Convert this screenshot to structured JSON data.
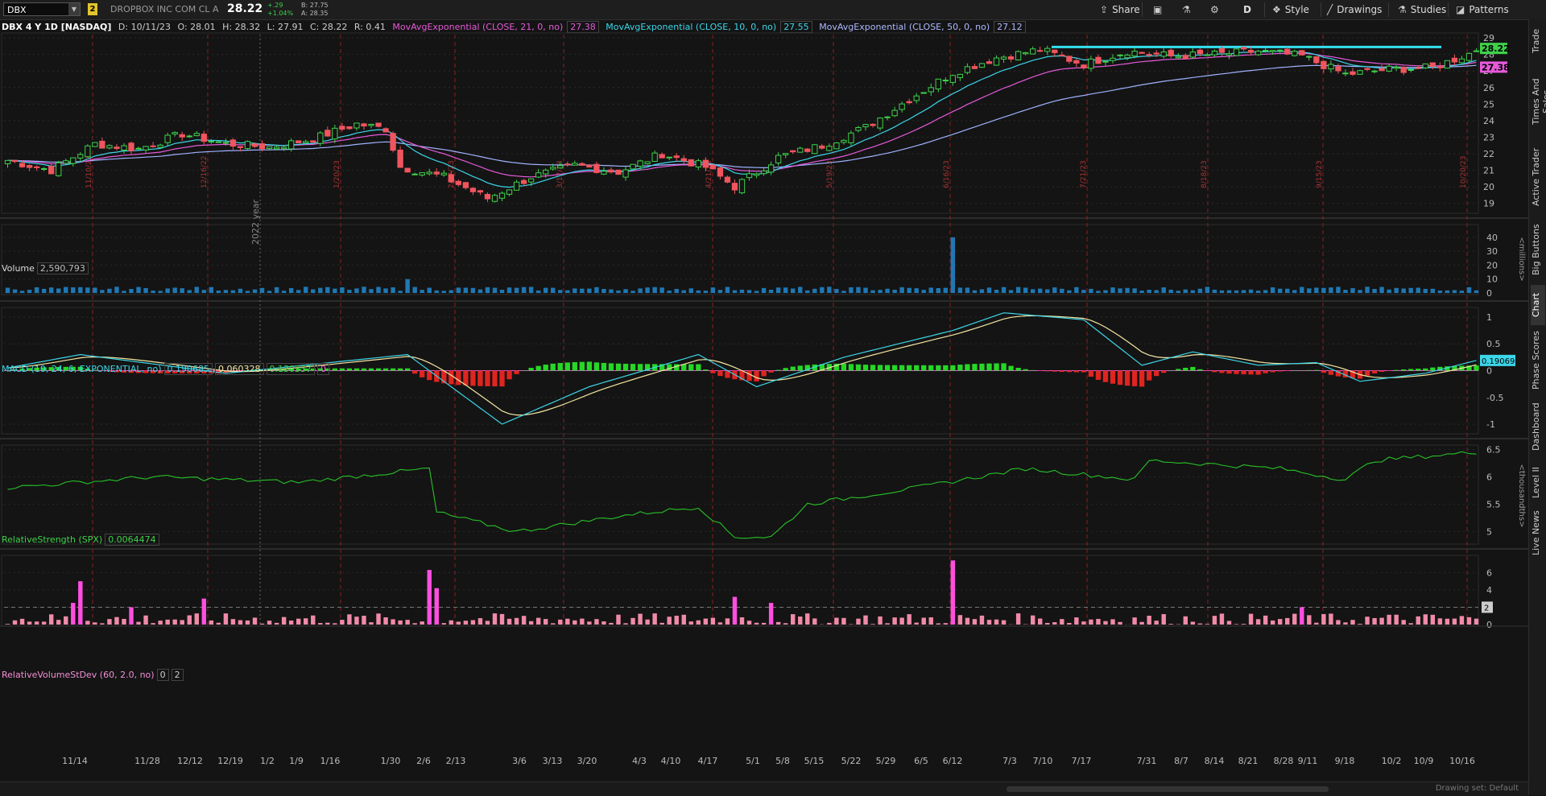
{
  "header": {
    "symbol": "DBX",
    "link_badge": "2",
    "company": "DROPBOX INC COM CL A",
    "last": "28.22",
    "change": "+.29",
    "change_pct": "+1.04%",
    "bid": "B: 27.75",
    "ask": "A: 28.35",
    "buttons": {
      "share": "Share",
      "period": "D",
      "style": "Style",
      "drawings": "Drawings",
      "studies": "Studies",
      "patterns": "Patterns"
    }
  },
  "info": {
    "title": "DBX 4 Y 1D [NASDAQ]",
    "date": "D: 10/11/23",
    "open": "O: 28.01",
    "high": "H: 28.32",
    "low": "L: 27.91",
    "close": "C: 28.22",
    "range": "R: 0.41",
    "ema21_label": "MovAvgExponential (CLOSE, 21, 0, no)",
    "ema21_val": "27.38",
    "ema10_label": "MovAvgExponential (CLOSE, 10, 0, no)",
    "ema10_val": "27.55",
    "ema50_label": "MovAvgExponential (CLOSE, 50, 0, no)",
    "ema50_val": "27.12"
  },
  "volume_panel": {
    "label": "Volume",
    "value": "2,590,793",
    "unit": "<millions>",
    "ticks": [
      "40",
      "30",
      "20",
      "10",
      "0"
    ]
  },
  "macd_panel": {
    "label": "MACD (10, 24, 6, EXPONENTIAL, no)",
    "v1": "0.190685",
    "v2": "0.060328",
    "v3": "0.130357",
    "v4": "0",
    "tag": "0.19069",
    "ticks": [
      "1",
      "0.5",
      "0",
      "-0.5",
      "-1"
    ]
  },
  "rs_panel": {
    "label": "RelativeStrength (SPX)",
    "value": "0.0064474",
    "unit": "<thousandths>",
    "ticks": [
      "6.5",
      "6",
      "5.5",
      "5"
    ]
  },
  "rv_panel": {
    "label": "RelativeVolumeStDev (60, 2.0, no)",
    "v1": "0",
    "v2": "2",
    "tag": "2",
    "ticks": [
      "6",
      "4",
      "2",
      "0"
    ]
  },
  "side_tabs": [
    "Trade",
    "Times And Sales",
    "Active Trader",
    "Big Buttons",
    "Chart",
    "Phase Scores",
    "Dashboard",
    "Level II",
    "Live News"
  ],
  "bottom": {
    "drawing_set": "Drawing set: Default"
  },
  "price_tags": {
    "last": "28.22",
    "ema21": "27.38"
  },
  "chart_data": {
    "type": "candlestick",
    "ylim": [
      18.5,
      29.2
    ],
    "yticks": [
      "29",
      "28",
      "27",
      "26",
      "25",
      "24",
      "23",
      "22",
      "21",
      "20",
      "19"
    ],
    "x_labels": [
      "11/14",
      "11/28",
      "12/12",
      "12/19",
      "1/2",
      "1/9",
      "1/16",
      "1/30",
      "2/6",
      "2/13",
      "3/6",
      "3/13",
      "3/20",
      "4/3",
      "4/10",
      "4/17",
      "5/1",
      "5/8",
      "5/15",
      "5/22",
      "5/29",
      "6/5",
      "6/12",
      "7/3",
      "7/10",
      "7/17",
      "7/31",
      "8/7",
      "8/14",
      "8/21",
      "8/28",
      "9/11",
      "9/18",
      "10/2",
      "10/9",
      "10/16"
    ],
    "year_label": "2022 year",
    "earnings_markers": [
      "11/10/22",
      "12/16/22",
      "1/20/23",
      "2/17/23",
      "3/17/23",
      "4/21/23",
      "5/19/23",
      "6/16/23",
      "7/21/23",
      "8/18/23",
      "9/15/23",
      "10/20/23"
    ],
    "price_path": [
      [
        0,
        21.6
      ],
      [
        6,
        21.0
      ],
      [
        12,
        22.6
      ],
      [
        18,
        22.3
      ],
      [
        24,
        23.2
      ],
      [
        30,
        22.6
      ],
      [
        36,
        22.4
      ],
      [
        42,
        22.9
      ],
      [
        48,
        23.8
      ],
      [
        52,
        23.5
      ],
      [
        54,
        21.2
      ],
      [
        60,
        20.6
      ],
      [
        66,
        19.3
      ],
      [
        72,
        20.6
      ],
      [
        78,
        21.3
      ],
      [
        84,
        20.9
      ],
      [
        90,
        22.0
      ],
      [
        96,
        21.2
      ],
      [
        100,
        20.0
      ],
      [
        106,
        21.8
      ],
      [
        112,
        22.5
      ],
      [
        118,
        23.6
      ],
      [
        124,
        25.3
      ],
      [
        130,
        26.9
      ],
      [
        136,
        27.8
      ],
      [
        142,
        28.3
      ],
      [
        148,
        27.4
      ],
      [
        154,
        28.2
      ],
      [
        160,
        27.9
      ],
      [
        166,
        28.0
      ],
      [
        172,
        28.2
      ],
      [
        178,
        27.9
      ],
      [
        184,
        26.8
      ],
      [
        190,
        27.1
      ],
      [
        196,
        27.2
      ],
      [
        202,
        28.22
      ]
    ],
    "resistance": 28.45,
    "volume_m": [
      [
        0,
        3
      ],
      [
        20,
        2
      ],
      [
        40,
        3
      ],
      [
        55,
        10
      ],
      [
        60,
        3
      ],
      [
        100,
        4
      ],
      [
        115,
        3
      ],
      [
        130,
        40
      ],
      [
        135,
        3
      ],
      [
        160,
        4
      ],
      [
        202,
        2.6
      ]
    ],
    "macd_path": [
      [
        0,
        0.05
      ],
      [
        10,
        0.3
      ],
      [
        30,
        -0.05
      ],
      [
        55,
        0.3
      ],
      [
        68,
        -1.0
      ],
      [
        80,
        -0.3
      ],
      [
        95,
        0.3
      ],
      [
        103,
        -0.3
      ],
      [
        115,
        0.25
      ],
      [
        130,
        0.75
      ],
      [
        137,
        1.08
      ],
      [
        148,
        0.95
      ],
      [
        156,
        0.1
      ],
      [
        163,
        0.35
      ],
      [
        172,
        0.1
      ],
      [
        180,
        0.15
      ],
      [
        186,
        -0.2
      ],
      [
        195,
        -0.05
      ],
      [
        202,
        0.19
      ]
    ],
    "rs_path": [
      [
        0,
        5.8
      ],
      [
        20,
        6.0
      ],
      [
        40,
        5.9
      ],
      [
        58,
        6.15
      ],
      [
        59,
        5.35
      ],
      [
        70,
        5.0
      ],
      [
        85,
        5.3
      ],
      [
        95,
        5.45
      ],
      [
        100,
        4.9
      ],
      [
        105,
        4.9
      ],
      [
        110,
        5.5
      ],
      [
        125,
        5.8
      ],
      [
        140,
        6.15
      ],
      [
        155,
        5.95
      ],
      [
        157,
        6.3
      ],
      [
        175,
        6.15
      ],
      [
        184,
        5.95
      ],
      [
        188,
        6.3
      ],
      [
        202,
        6.45
      ]
    ],
    "relvol": [
      [
        9,
        2.5
      ],
      [
        10,
        5
      ],
      [
        17,
        2
      ],
      [
        27,
        3
      ],
      [
        58,
        6.3
      ],
      [
        59,
        4.2
      ],
      [
        100,
        3.2
      ],
      [
        105,
        2.5
      ],
      [
        130,
        7.4
      ],
      [
        178,
        2
      ]
    ]
  }
}
